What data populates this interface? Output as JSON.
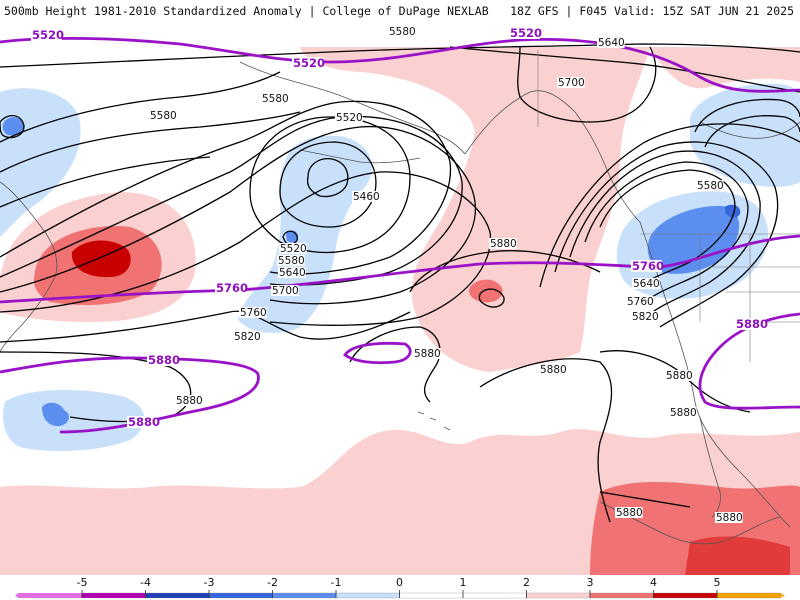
{
  "header": {
    "left_title": "500mb Height 1981-2010 Standardized Anomaly | College of DuPage NEXLAB",
    "right_title": "18Z GFS | F045 Valid: 15Z SAT JUN 21 2025"
  },
  "colors": {
    "anom_pos_1": "#fbd0d0",
    "anom_pos_2": "#f07272",
    "anom_pos_3": "#e23b3b",
    "anom_pos_4": "#c80000",
    "anom_neg_1": "#c8e0fa",
    "anom_neg_2": "#5c8ef0",
    "anom_neg_3": "#3566dc",
    "height_contour": "#000000",
    "highlight_contour": "#9a12c8",
    "coastline": "#555555"
  },
  "map": {
    "height_labels": [
      {
        "text": "5580",
        "id": "h1"
      },
      {
        "text": "5640",
        "id": "h2"
      },
      {
        "text": "5700",
        "id": "h3"
      },
      {
        "text": "5580",
        "id": "h4"
      },
      {
        "text": "5580",
        "id": "h5"
      },
      {
        "text": "5520",
        "id": "h6"
      },
      {
        "text": "5460",
        "id": "h7"
      },
      {
        "text": "5520",
        "id": "h8"
      },
      {
        "text": "5580",
        "id": "h9"
      },
      {
        "text": "5640",
        "id": "h10"
      },
      {
        "text": "5700",
        "id": "h11"
      },
      {
        "text": "5760",
        "id": "h12"
      },
      {
        "text": "5820",
        "id": "h13"
      },
      {
        "text": "5880",
        "id": "h14"
      },
      {
        "text": "5880",
        "id": "h15"
      },
      {
        "text": "5880",
        "id": "h16"
      },
      {
        "text": "5880",
        "id": "h17"
      },
      {
        "text": "5580",
        "id": "h18"
      },
      {
        "text": "5640",
        "id": "h19"
      },
      {
        "text": "5760",
        "id": "h20"
      },
      {
        "text": "5820",
        "id": "h21"
      },
      {
        "text": "5880",
        "id": "h22"
      },
      {
        "text": "5880",
        "id": "h23"
      },
      {
        "text": "5880",
        "id": "h24"
      },
      {
        "text": "5880",
        "id": "h25"
      }
    ],
    "highlight_labels": [
      {
        "text": "5520"
      },
      {
        "text": "5520"
      },
      {
        "text": "5520"
      },
      {
        "text": "5760"
      },
      {
        "text": "5760"
      },
      {
        "text": "5880"
      },
      {
        "text": "5880"
      },
      {
        "text": "5880"
      }
    ]
  },
  "legend": {
    "ticks": [
      "-5",
      "-4",
      "-3",
      "-2",
      "-1",
      "0",
      "1",
      "2",
      "3",
      "4",
      "5"
    ],
    "colors": [
      "#b000b0",
      "#2040b8",
      "#3566dc",
      "#5c8ef0",
      "#c8e0fa",
      "#ffffff",
      "#ffffff",
      "#fbd0d0",
      "#f07272",
      "#c80000",
      "#f0a000"
    ]
  }
}
